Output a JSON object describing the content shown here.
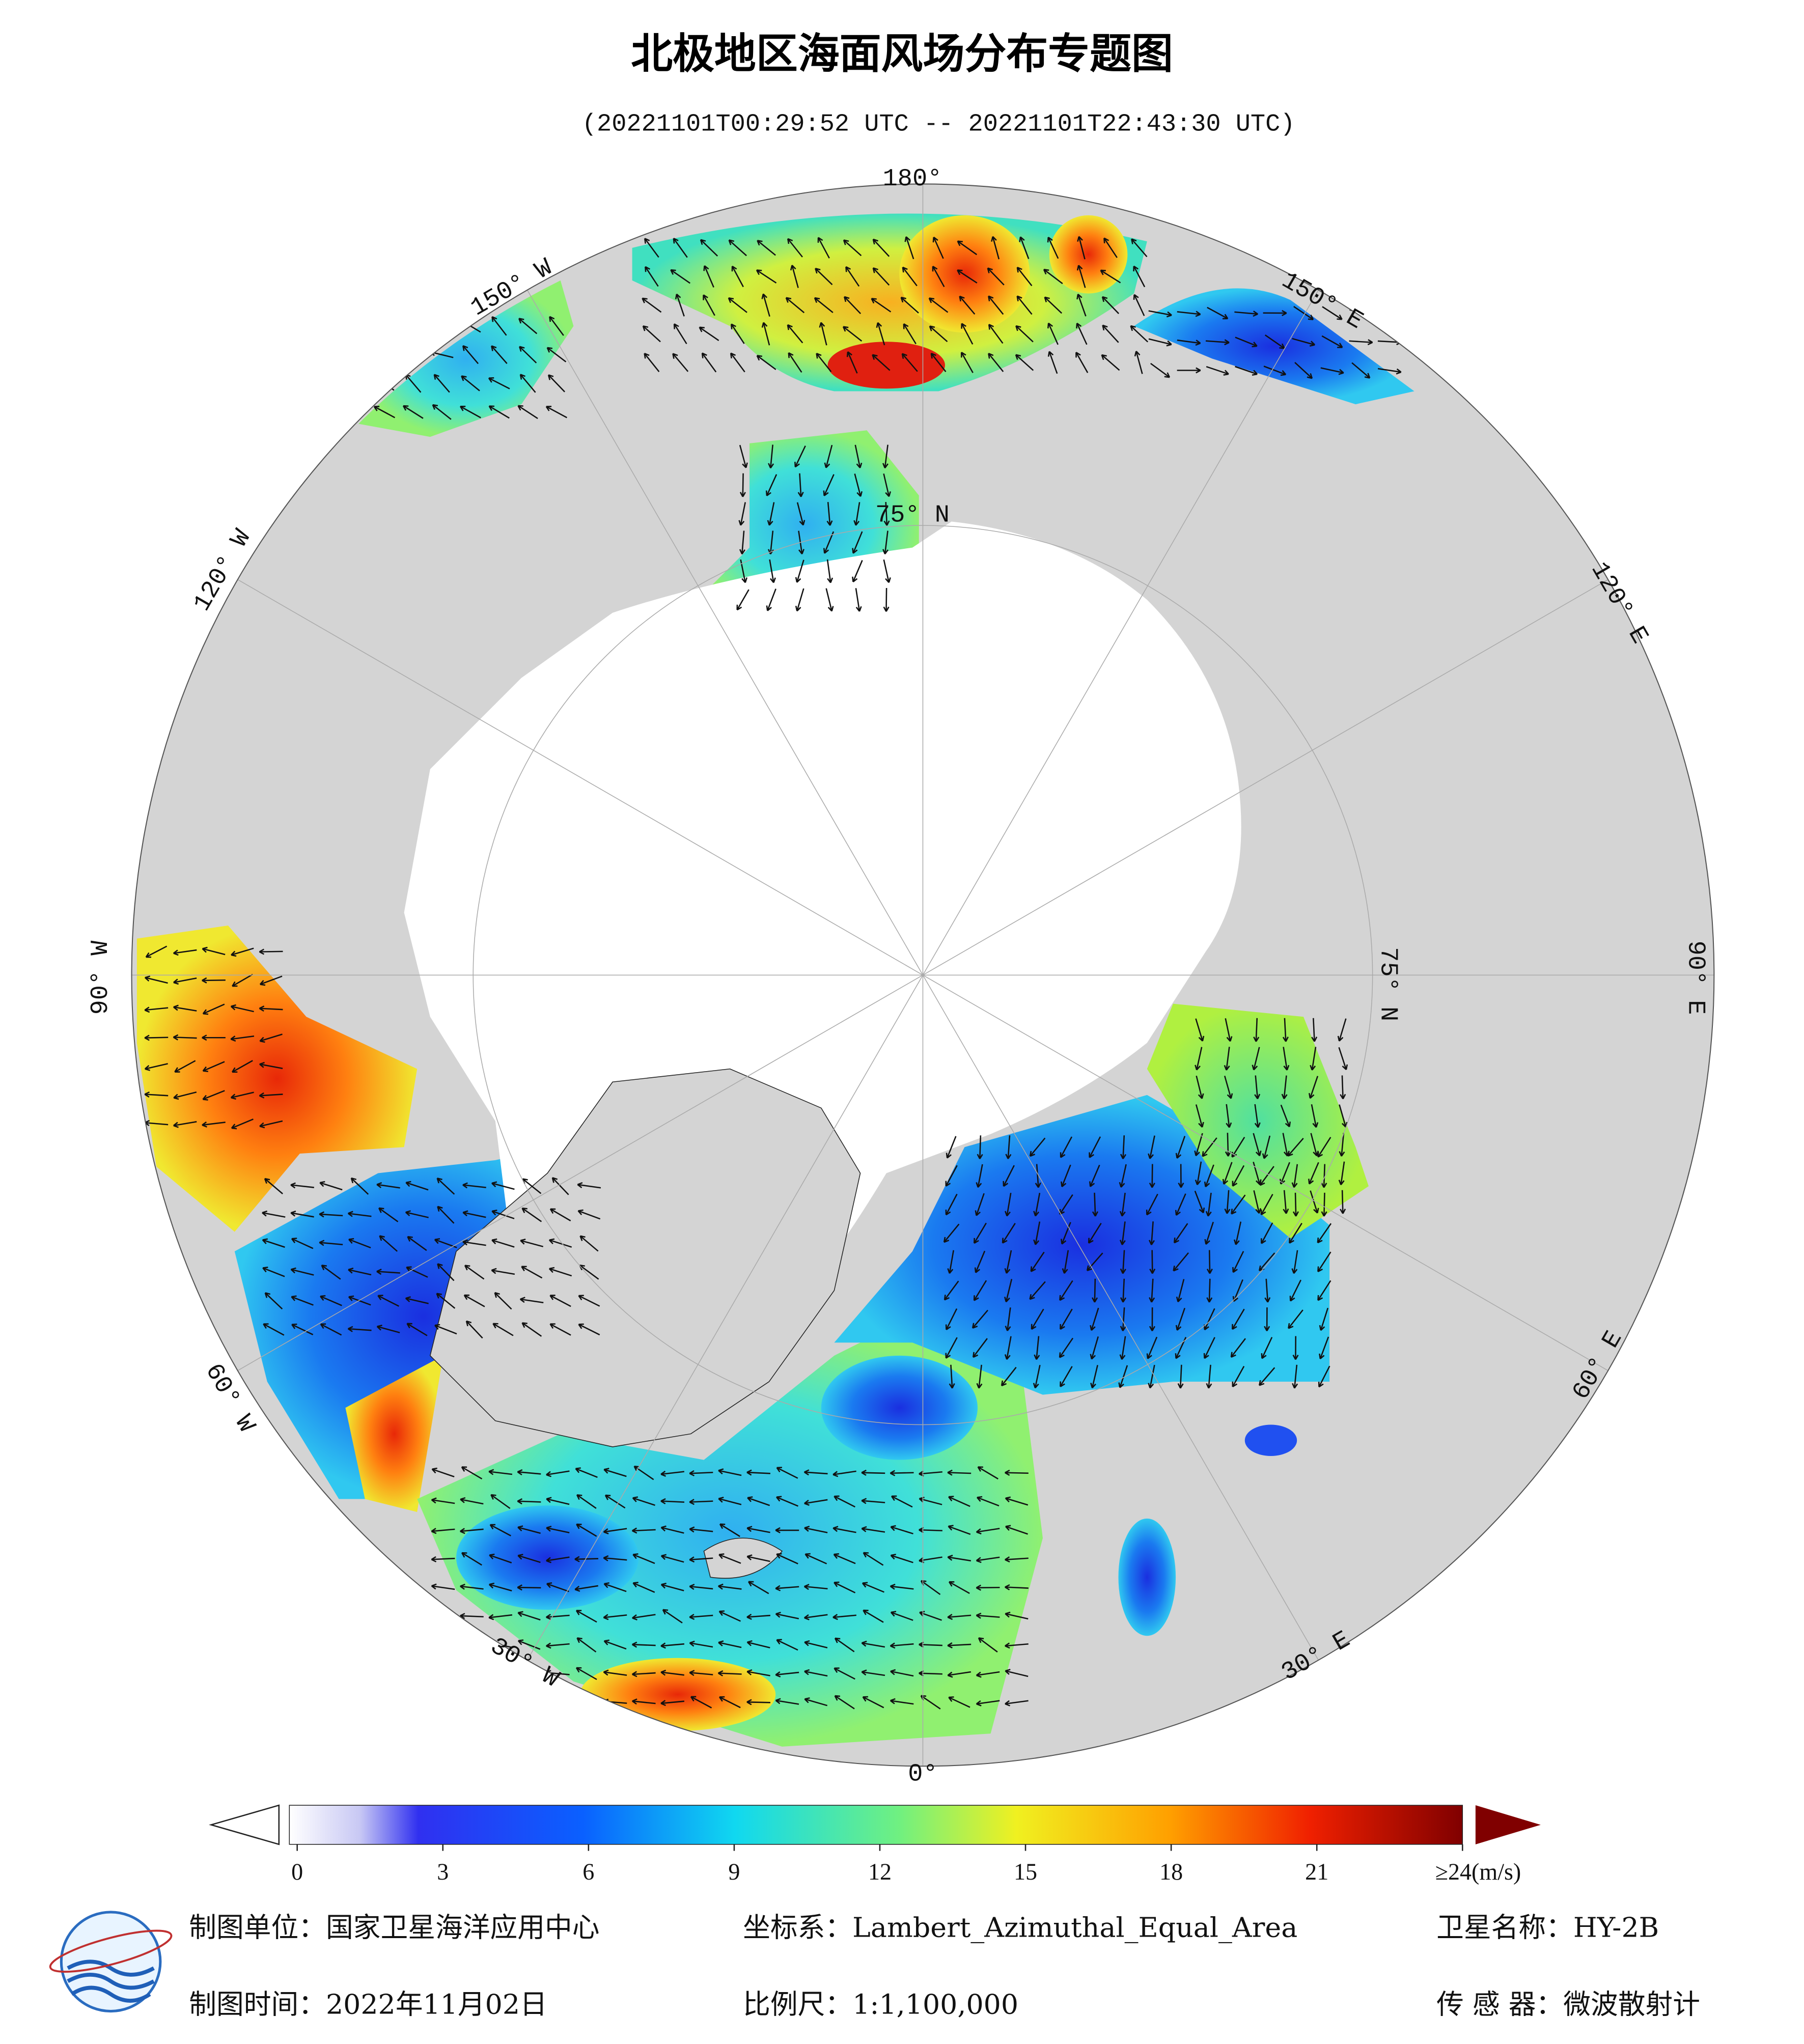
{
  "title": "北极地区海面风场分布专题图",
  "subtitle": "(20221101T00:29:52 UTC -- 20221101T22:43:30 UTC)",
  "graticule_labels": {
    "lon_180": "180°",
    "lon_150e": "150° E",
    "lon_120e": "120° E",
    "lon_90e": "90° E",
    "lon_60e": "60° E",
    "lon_30e": "30° E",
    "lon_0": "0°",
    "lon_30w": "30° W",
    "lon_60w": "60° W",
    "lon_90w": "90° W",
    "lon_120w": "120° W",
    "lon_150w": "150° W",
    "lat_75n": "75° N"
  },
  "colorbar": {
    "ticks": [
      0,
      3,
      6,
      9,
      12,
      15,
      18,
      21,
      {
        "value": 24,
        "label": "≥24(m/s)"
      }
    ]
  },
  "footer": {
    "agency": "制图单位：国家卫星海洋应用中心",
    "projection": "坐标系：Lambert_Azimuthal_Equal_Area",
    "satellite": "卫星名称：HY-2B",
    "date": "制图时间：2022年11月02日",
    "scale": "比例尺：1:1,100,000",
    "sensor": "传 感 器：微波散射计"
  }
}
